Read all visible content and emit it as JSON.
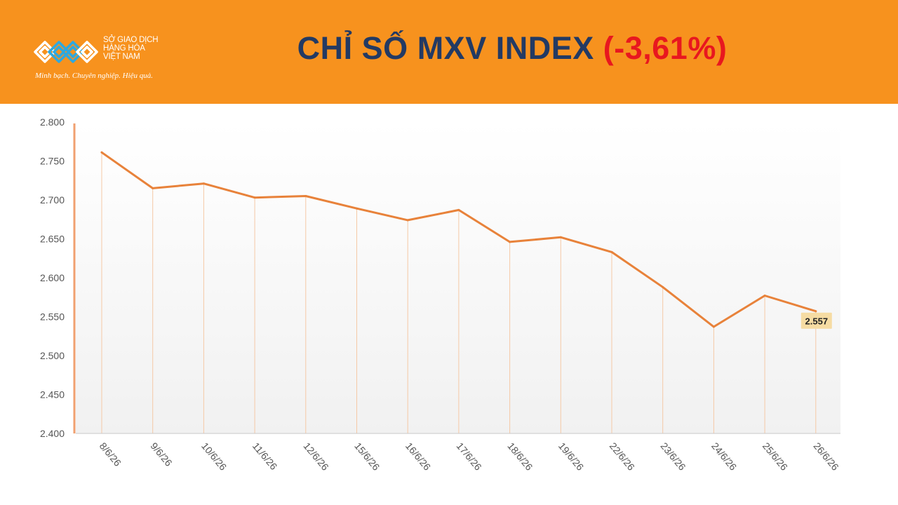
{
  "header": {
    "background_color": "#f7921e",
    "logo": {
      "lines": [
        "SỞ GIAO DỊCH",
        "HÀNG HÓA",
        "VIỆT NAM"
      ],
      "tagline": "Minh bạch. Chuyên nghiệp. Hiệu quả."
    },
    "title_main": "CHỈ SỐ MXV INDEX",
    "title_change": "(-3,61%)",
    "title_color": "#233a63",
    "change_color": "#e8171f"
  },
  "chart_data": {
    "type": "line",
    "title": "",
    "xlabel": "",
    "ylabel": "",
    "categories": [
      "8/6/26",
      "9/6/26",
      "10/6/26",
      "11/6/26",
      "12/6/26",
      "15/6/26",
      "16/6/26",
      "17/6/26",
      "18/6/26",
      "19/6/26",
      "22/6/26",
      "23/6/26",
      "24/6/26",
      "25/6/26",
      "26/6/26"
    ],
    "series": [
      {
        "values": [
          2761,
          2715,
          2721,
          2703,
          2705,
          2689,
          2674,
          2687,
          2646,
          2652,
          2633,
          2588,
          2537,
          2577,
          2557
        ],
        "color": "#e8823a"
      }
    ],
    "ylim": [
      2400,
      2800
    ],
    "yticks": [
      2400,
      2450,
      2500,
      2550,
      2600,
      2650,
      2700,
      2750,
      2800
    ],
    "ytick_labels": [
      "2.400",
      "2.450",
      "2.500",
      "2.550",
      "2.600",
      "2.650",
      "2.700",
      "2.750",
      "2.800"
    ],
    "last_value_label": "2.557",
    "drop_lines": true,
    "grid": false,
    "legend": "none"
  }
}
